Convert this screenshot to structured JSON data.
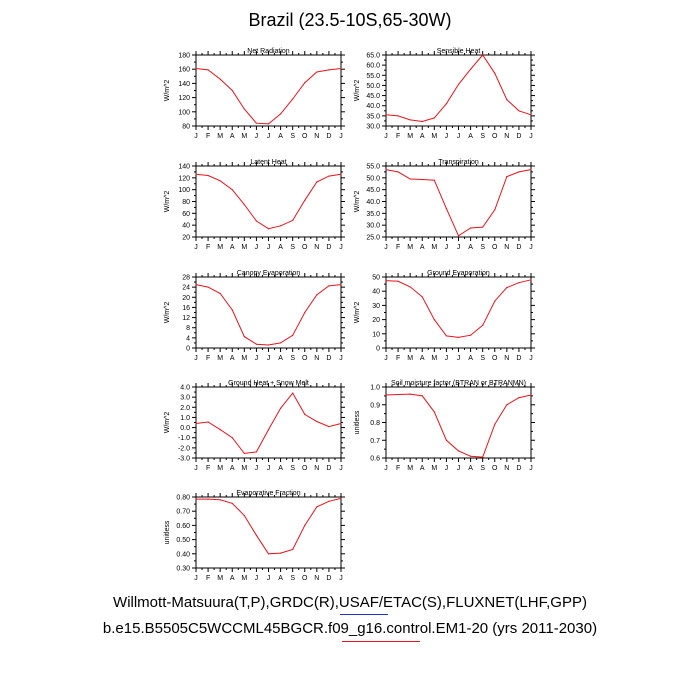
{
  "title": "Brazil (23.5-10S,65-30W)",
  "footer": {
    "obs_line": "Willmott-Matsuura(T,P),GRDC(R),USAF/ETAC(S),FLUXNET(LHF,GPP)",
    "case_line": "b.e15.B5505C5WCCML45BGCR.f09_g16.control.EM1-20 (yrs 2011-2030)"
  },
  "colors": {
    "line": "#e8141c",
    "axis": "#000000",
    "accent_blue": "#2233cc",
    "accent_red": "#e8141c"
  },
  "chart_data": [
    {
      "type": "line",
      "title": "Net Radiation",
      "ylabel": "W/m^2",
      "x": [
        "J",
        "F",
        "M",
        "A",
        "M",
        "J",
        "J",
        "A",
        "S",
        "O",
        "N",
        "D",
        "J"
      ],
      "values": [
        161,
        159,
        146,
        130,
        104,
        84,
        83,
        97,
        118,
        141,
        156,
        159,
        161
      ],
      "ylim": [
        80,
        180
      ],
      "yticks": [
        "80",
        "100",
        "120",
        "140",
        "160",
        "180"
      ],
      "ytick_values": [
        80,
        100,
        120,
        140,
        160,
        180
      ]
    },
    {
      "type": "line",
      "title": "Sensible Heat",
      "ylabel": "W/m^2",
      "x": [
        "J",
        "F",
        "M",
        "A",
        "M",
        "J",
        "J",
        "A",
        "S",
        "O",
        "N",
        "D",
        "J"
      ],
      "values": [
        35.5,
        35,
        33,
        32.2,
        34,
        41,
        50.5,
        58,
        65,
        56,
        43,
        37.5,
        35.5
      ],
      "ylim": [
        30,
        65
      ],
      "yticks": [
        "30.0",
        "35.0",
        "40.0",
        "45.0",
        "50.0",
        "55.0",
        "60.0",
        "65.0"
      ],
      "ytick_values": [
        30,
        35,
        40,
        45,
        50,
        55,
        60,
        65
      ]
    },
    {
      "type": "line",
      "title": "Latent Heat",
      "ylabel": "W/m^2",
      "x": [
        "J",
        "F",
        "M",
        "A",
        "M",
        "J",
        "J",
        "A",
        "S",
        "O",
        "N",
        "D",
        "J"
      ],
      "values": [
        126,
        124,
        115,
        100,
        75,
        47,
        34,
        39,
        48,
        82,
        113,
        123,
        126
      ],
      "ylim": [
        20,
        140
      ],
      "yticks": [
        "20",
        "40",
        "60",
        "80",
        "100",
        "120",
        "140"
      ],
      "ytick_values": [
        20,
        40,
        60,
        80,
        100,
        120,
        140
      ]
    },
    {
      "type": "line",
      "title": "Transpiration",
      "ylabel": "W/m^2",
      "x": [
        "J",
        "F",
        "M",
        "A",
        "M",
        "J",
        "J",
        "A",
        "S",
        "O",
        "N",
        "D",
        "J"
      ],
      "values": [
        53.5,
        52.5,
        49.5,
        49.3,
        49,
        37,
        25.5,
        28.8,
        29.2,
        36.5,
        50.5,
        52.5,
        53.5
      ],
      "ylim": [
        25,
        55
      ],
      "yticks": [
        "25.0",
        "30.0",
        "35.0",
        "40.0",
        "45.0",
        "50.0",
        "55.0"
      ],
      "ytick_values": [
        25,
        30,
        35,
        40,
        45,
        50,
        55
      ]
    },
    {
      "type": "line",
      "title": "Canopy Evaporation",
      "ylabel": "W/m^2",
      "x": [
        "J",
        "F",
        "M",
        "A",
        "M",
        "J",
        "J",
        "A",
        "S",
        "O",
        "N",
        "D",
        "J"
      ],
      "values": [
        25,
        24,
        21.5,
        15,
        4.5,
        1.5,
        1.2,
        2,
        5,
        14,
        21,
        24.5,
        25
      ],
      "ylim": [
        0,
        28
      ],
      "yticks": [
        "0",
        "4",
        "8",
        "12",
        "16",
        "20",
        "24",
        "28"
      ],
      "ytick_values": [
        0,
        4,
        8,
        12,
        16,
        20,
        24,
        28
      ]
    },
    {
      "type": "line",
      "title": "Ground Evaporation",
      "ylabel": "W/m^2",
      "x": [
        "J",
        "F",
        "M",
        "A",
        "M",
        "J",
        "J",
        "A",
        "S",
        "O",
        "N",
        "D",
        "J"
      ],
      "values": [
        47.5,
        47,
        43,
        36,
        20,
        8.5,
        7.5,
        9,
        16,
        33,
        42.5,
        46,
        48
      ],
      "ylim": [
        0,
        50
      ],
      "yticks": [
        "0",
        "10",
        "20",
        "30",
        "40",
        "50"
      ],
      "ytick_values": [
        0,
        10,
        20,
        30,
        40,
        50
      ]
    },
    {
      "type": "line",
      "title": "Ground Heat + Snow Melt",
      "ylabel": "W/m^2",
      "x": [
        "J",
        "F",
        "M",
        "A",
        "M",
        "J",
        "J",
        "A",
        "S",
        "O",
        "N",
        "D",
        "J"
      ],
      "values": [
        0.4,
        0.55,
        -0.2,
        -1,
        -2.55,
        -2.4,
        -0.2,
        1.9,
        3.4,
        1.3,
        0.6,
        0.1,
        0.4
      ],
      "ylim": [
        -3,
        4
      ],
      "yticks": [
        "-3.0",
        "-2.0",
        "-1.0",
        "0.0",
        "1.0",
        "2.0",
        "3.0",
        "4.0"
      ],
      "ytick_values": [
        -3,
        -2,
        -1,
        0,
        1,
        2,
        3,
        4
      ]
    },
    {
      "type": "line",
      "title": "Soil moisture factor (BTRAN or BTRANMN)",
      "ylabel": "unitless",
      "x": [
        "J",
        "F",
        "M",
        "A",
        "M",
        "J",
        "J",
        "A",
        "S",
        "O",
        "N",
        "D",
        "J"
      ],
      "values": [
        0.955,
        0.958,
        0.96,
        0.95,
        0.86,
        0.7,
        0.64,
        0.61,
        0.605,
        0.79,
        0.9,
        0.94,
        0.955
      ],
      "ylim": [
        0.6,
        1.0
      ],
      "yticks": [
        "0.6",
        "0.7",
        "0.8",
        "0.9",
        "1.0"
      ],
      "ytick_values": [
        0.6,
        0.7,
        0.8,
        0.9,
        1.0
      ]
    },
    {
      "type": "line",
      "title": "Evaporative Fraction",
      "ylabel": "unitless",
      "x": [
        "J",
        "F",
        "M",
        "A",
        "M",
        "J",
        "J",
        "A",
        "S",
        "O",
        "N",
        "D",
        "J"
      ],
      "values": [
        0.785,
        0.785,
        0.78,
        0.755,
        0.67,
        0.53,
        0.4,
        0.405,
        0.43,
        0.6,
        0.73,
        0.77,
        0.79
      ],
      "ylim": [
        0.3,
        0.8
      ],
      "yticks": [
        "0.30",
        "0.40",
        "0.50",
        "0.60",
        "0.70",
        "0.80"
      ],
      "ytick_values": [
        0.3,
        0.4,
        0.5,
        0.6,
        0.7,
        0.8
      ]
    }
  ]
}
